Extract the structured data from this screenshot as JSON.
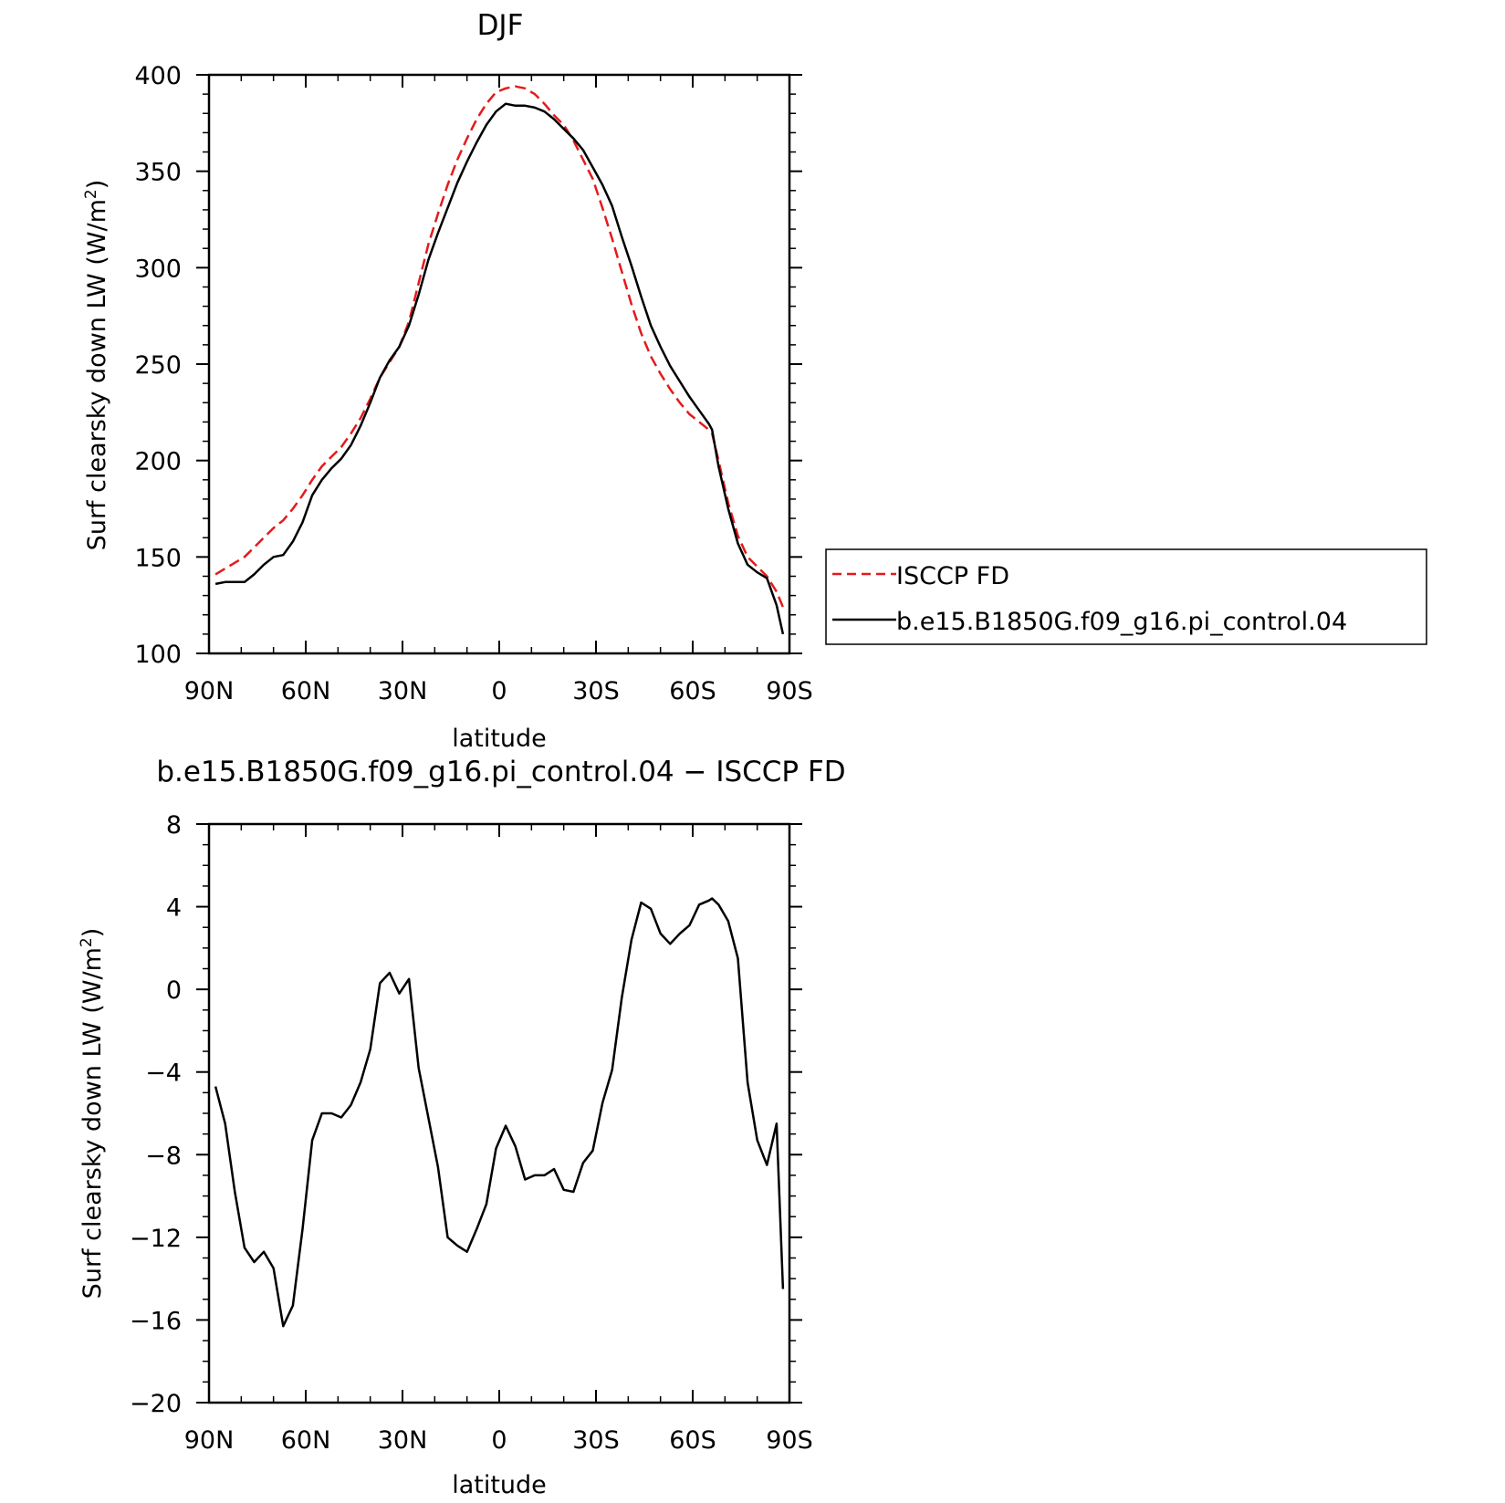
{
  "chart_data": [
    {
      "type": "line",
      "title": "DJF",
      "xlabel": "latitude",
      "ylabel": "Surf clearsky down LW (W/m²)",
      "ylabel_main": "Surf clearsky down LW (W/m",
      "ylabel_sup": "2",
      "ylabel_end": ")",
      "x_ticks": [
        "90N",
        "60N",
        "30N",
        "0",
        "30S",
        "60S",
        "90S"
      ],
      "x_tick_values": [
        -90,
        -60,
        -30,
        0,
        30,
        60,
        90
      ],
      "y_ticks": [
        "100",
        "150",
        "200",
        "250",
        "300",
        "350",
        "400"
      ],
      "y_tick_values": [
        100,
        150,
        200,
        250,
        300,
        350,
        400
      ],
      "xlim": [
        -90,
        90
      ],
      "ylim": [
        100,
        400
      ],
      "legend_position": "right",
      "series": [
        {
          "name": "ISCCP FD",
          "color": "#e41a1c",
          "style": "dashed",
          "x": [
            -88,
            -85,
            -82,
            -79,
            -76,
            -73,
            -70,
            -67,
            -64,
            -61,
            -58,
            -55,
            -52,
            -49,
            -46,
            -43,
            -40,
            -37,
            -34,
            -31,
            -28,
            -25,
            -22,
            -19,
            -16,
            -13,
            -10,
            -7,
            -4,
            -1,
            2,
            5,
            8,
            11,
            14,
            17,
            20,
            23,
            26,
            29,
            32,
            35,
            38,
            41,
            44,
            47,
            50,
            53,
            56,
            59,
            62,
            65,
            66,
            68,
            71,
            74,
            77,
            80,
            83,
            86,
            88
          ],
          "y": [
            141,
            144,
            147,
            150,
            155,
            160,
            165,
            169,
            175,
            182,
            190,
            197,
            202,
            207,
            214,
            222,
            232,
            243,
            251,
            259,
            272,
            292,
            312,
            328,
            343,
            356,
            367,
            377,
            385,
            391,
            393,
            394,
            393,
            390,
            385,
            379,
            374,
            366,
            356,
            346,
            331,
            315,
            298,
            281,
            266,
            254,
            245,
            237,
            230,
            224,
            220,
            216,
            214,
            200,
            178,
            161,
            150,
            145,
            140,
            132,
            124
          ]
        },
        {
          "name": "b.e15.B1850G.f09_g16.pi_control.04",
          "color": "#000000",
          "style": "solid",
          "x": [
            -88,
            -85,
            -82,
            -79,
            -76,
            -73,
            -70,
            -67,
            -64,
            -61,
            -58,
            -55,
            -52,
            -49,
            -46,
            -43,
            -40,
            -37,
            -34,
            -31,
            -28,
            -25,
            -22,
            -19,
            -16,
            -13,
            -10,
            -7,
            -4,
            -1,
            2,
            5,
            8,
            11,
            14,
            17,
            20,
            23,
            26,
            29,
            32,
            35,
            38,
            41,
            44,
            47,
            50,
            53,
            56,
            59,
            62,
            65,
            66,
            68,
            71,
            74,
            77,
            80,
            83,
            86,
            88
          ],
          "y": [
            136,
            137,
            137,
            137,
            141,
            146,
            150,
            151,
            158,
            168,
            182,
            190,
            196,
            201,
            208,
            218,
            230,
            243,
            252,
            259,
            270,
            286,
            304,
            318,
            331,
            344,
            355,
            365,
            374,
            381,
            385,
            384,
            384,
            383,
            381,
            377,
            372,
            367,
            361,
            352,
            343,
            332,
            316,
            301,
            285,
            270,
            259,
            249,
            241,
            233,
            226,
            219,
            216,
            197,
            175,
            157,
            146,
            142,
            139,
            125,
            110
          ]
        }
      ]
    },
    {
      "type": "line",
      "title": "b.e15.B1850G.f09_g16.pi_control.04 − ISCCP FD",
      "xlabel": "latitude",
      "ylabel": "Surf clearsky down LW (W/m²)",
      "ylabel_main": "Surf clearsky down LW (W/m",
      "ylabel_sup": "2",
      "ylabel_end": ")",
      "x_ticks": [
        "90N",
        "60N",
        "30N",
        "0",
        "30S",
        "60S",
        "90S"
      ],
      "x_tick_values": [
        -90,
        -60,
        -30,
        0,
        30,
        60,
        90
      ],
      "y_ticks": [
        "−20",
        "−16",
        "−12",
        "−8",
        "−4",
        "0",
        "4",
        "8"
      ],
      "y_tick_values": [
        -20,
        -16,
        -12,
        -8,
        -4,
        0,
        4,
        8
      ],
      "xlim": [
        -90,
        90
      ],
      "ylim": [
        -20,
        8
      ],
      "series": [
        {
          "name": "",
          "color": "#000000",
          "style": "solid",
          "x": [
            -88,
            -85,
            -82,
            -79,
            -76,
            -73,
            -70,
            -67,
            -64,
            -61,
            -58,
            -55,
            -52,
            -49,
            -46,
            -43,
            -40,
            -37,
            -34,
            -31,
            -28,
            -25,
            -22,
            -19,
            -16,
            -13,
            -10,
            -7,
            -4,
            -1,
            2,
            5,
            8,
            11,
            14,
            17,
            20,
            23,
            26,
            29,
            32,
            35,
            38,
            41,
            44,
            47,
            50,
            53,
            56,
            59,
            62,
            65,
            66,
            68,
            71,
            74,
            77,
            80,
            83,
            86,
            88
          ],
          "y": [
            -4.7,
            -6.5,
            -9.8,
            -12.5,
            -13.2,
            -12.7,
            -13.5,
            -16.3,
            -15.3,
            -11.6,
            -7.3,
            -6.0,
            -6.0,
            -6.2,
            -5.6,
            -4.5,
            -2.9,
            0.3,
            0.8,
            -0.2,
            0.5,
            -3.8,
            -6.2,
            -8.6,
            -12.0,
            -12.4,
            -12.7,
            -11.6,
            -10.4,
            -7.7,
            -6.6,
            -7.6,
            -9.2,
            -9.0,
            -9.0,
            -8.7,
            -9.7,
            -9.8,
            -8.4,
            -7.8,
            -5.5,
            -3.9,
            -0.4,
            2.4,
            4.2,
            3.9,
            2.7,
            2.2,
            2.7,
            3.1,
            4.1,
            4.3,
            4.4,
            4.1,
            3.3,
            1.5,
            -4.5,
            -7.3,
            -8.5,
            -6.5,
            -14.5
          ]
        }
      ]
    }
  ]
}
